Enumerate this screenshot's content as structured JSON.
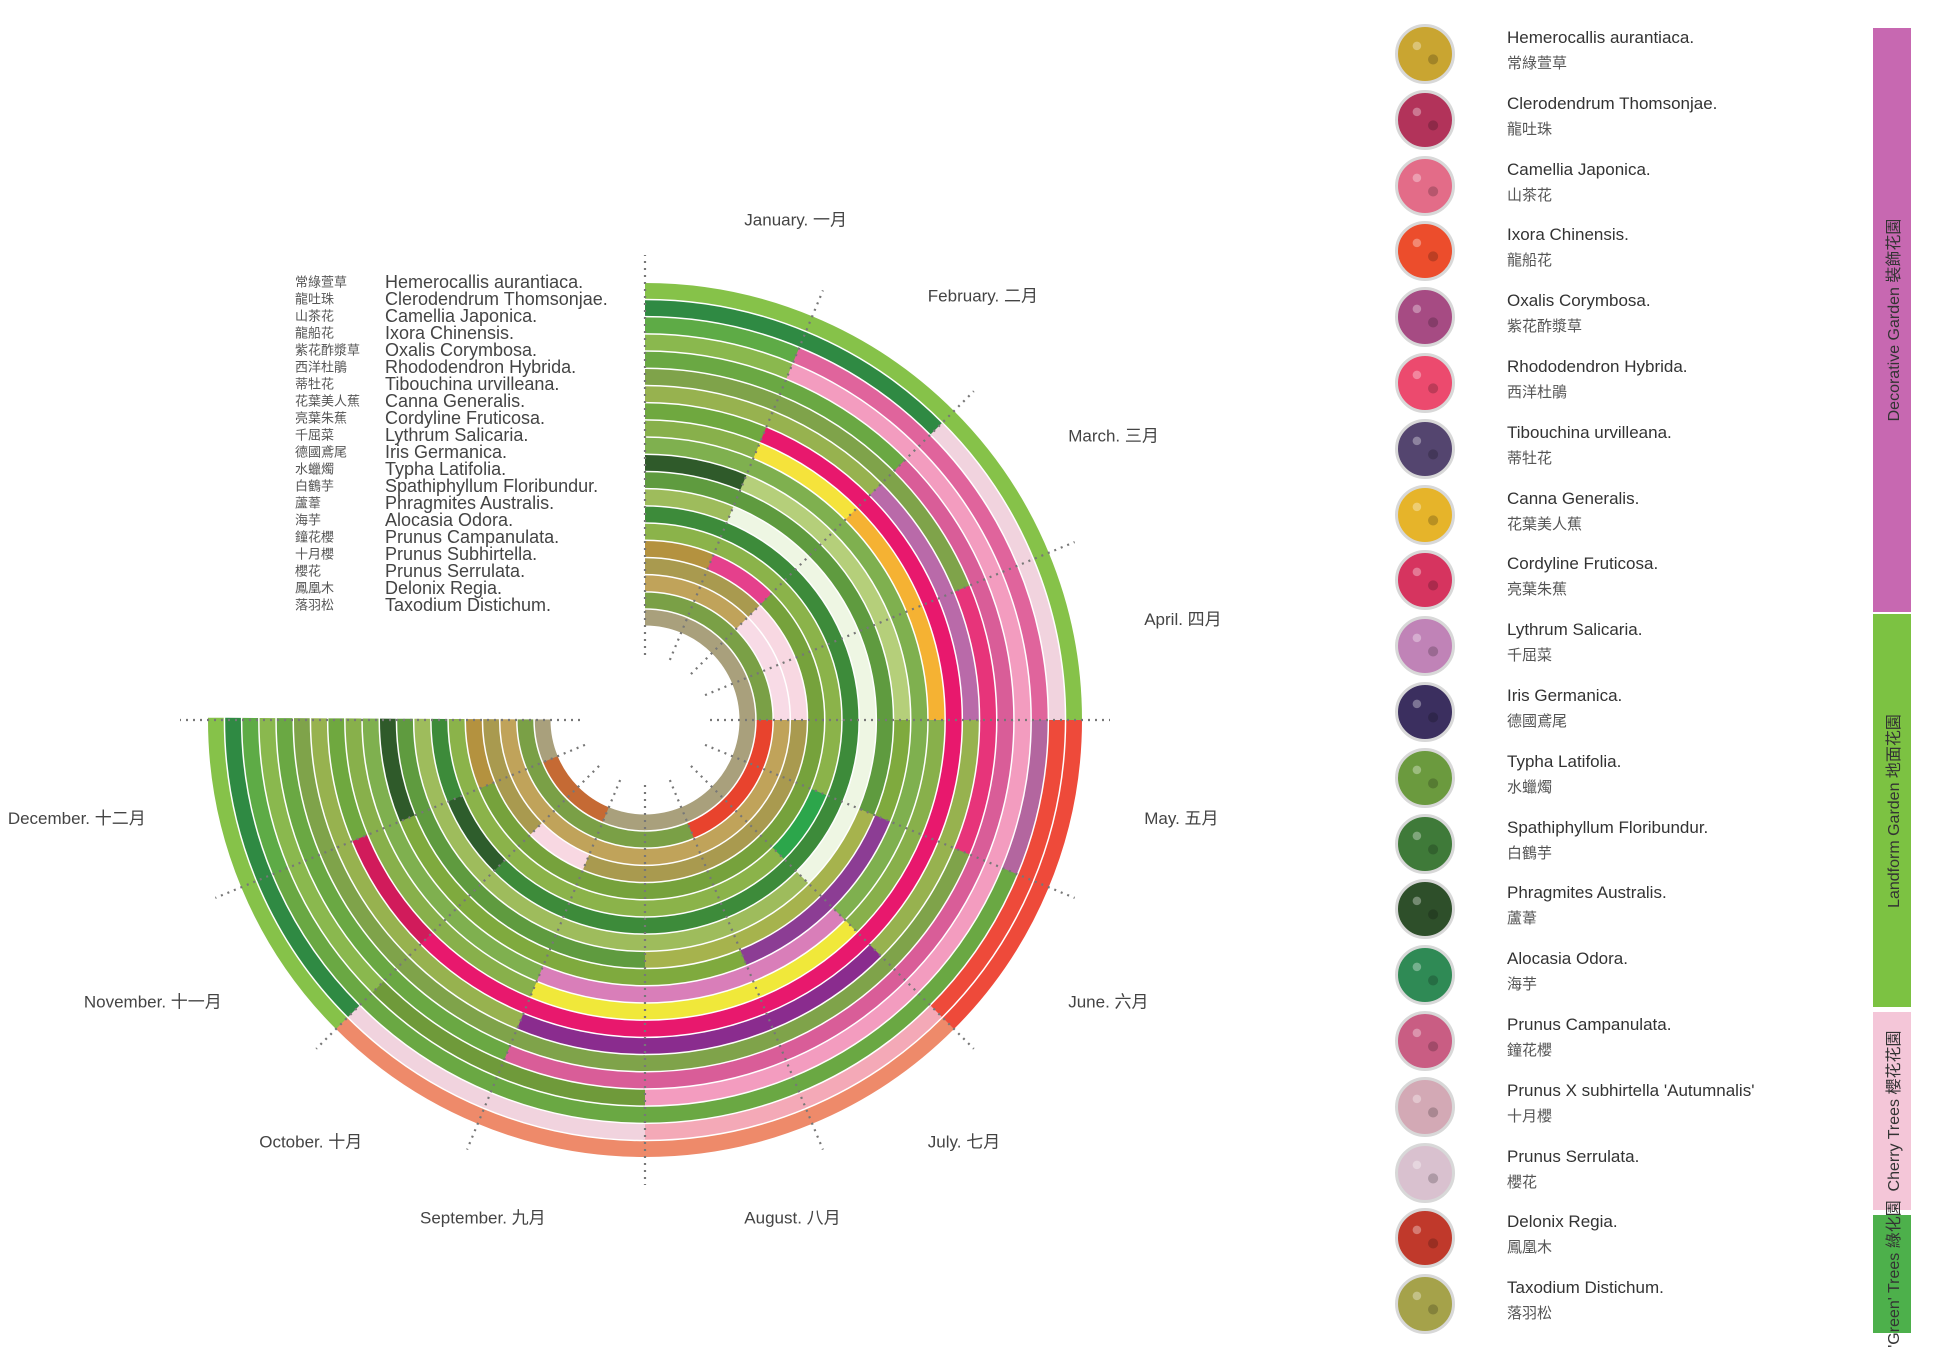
{
  "chart_data": {
    "type": "radial-bloom-calendar",
    "months": [
      "January. 一月",
      "February. 二月",
      "March. 三月",
      "April. 四月",
      "May. 五月",
      "June. 六月",
      "July. 七月",
      "August. 八月",
      "September. 九月",
      "October. 十月",
      "November. 十一月",
      "December. 十二月"
    ],
    "series": [
      {
        "name": "Hemerocallis aurantiaca.",
        "cn": "常綠萱草",
        "start_month": 1,
        "end_month": 12,
        "colors": [
          "#86c249",
          "#86c249",
          "#86c249",
          "#86c249",
          "#ee4a3a",
          "#ee4a3a",
          "#ee8a6a",
          "#ee8a6a",
          "#ee8a6a",
          "#ee8a6a",
          "#86c249",
          "#86c249"
        ]
      },
      {
        "name": "Clerodendrum Thomsonjae.",
        "cn": "龍吐珠",
        "start_month": 1,
        "end_month": 12,
        "colors": [
          "#2f8a43",
          "#2f8a43",
          "#f1d3de",
          "#f1d3de",
          "#ee4a3a",
          "#ee4a3a",
          "#f4a9b7",
          "#f4a9b7",
          "#f1d3de",
          "#f1d3de",
          "#2f8a43",
          "#2f8a43"
        ]
      },
      {
        "name": "Camellia Japonica.",
        "cn": "山茶花",
        "start_month": 1,
        "end_month": 12,
        "colors": [
          "#5eab46",
          "#e0649c",
          "#e0649c",
          "#e0649c",
          "#b3669f",
          "#6aa843",
          "#6aa843",
          "#6aa843",
          "#6aa843",
          "#6aa843",
          "#6aa843",
          "#5eab46"
        ]
      },
      {
        "name": "Ixora Chinensis.",
        "cn": "龍船花",
        "start_month": 1,
        "end_month": 12,
        "colors": [
          "#8ab84e",
          "#f39cbf",
          "#f39cbf",
          "#f39cbf",
          "#f39cbf",
          "#f39cbf",
          "#f39cbf",
          "#f39cbf",
          "#6f9a3a",
          "#6f9a3a",
          "#8ab84e",
          "#8ab84e"
        ]
      },
      {
        "name": "Oxalis Corymbosa.",
        "cn": "紫花酢漿草",
        "start_month": 1,
        "end_month": 12,
        "colors": [
          "#6aa843",
          "#6aa843",
          "#d95d98",
          "#d95d98",
          "#d95d98",
          "#d95d98",
          "#d95d98",
          "#d95d98",
          "#d95d98",
          "#6aa843",
          "#6aa843",
          "#6aa843"
        ]
      },
      {
        "name": "Rhododendron Hybrida.",
        "cn": "西洋杜鵑",
        "start_month": 1,
        "end_month": 12,
        "colors": [
          "#7fa34a",
          "#7fa34a",
          "#7fa34a",
          "#e7347a",
          "#e7347a",
          "#7fa34a",
          "#7fa34a",
          "#7fa34a",
          "#7fa34a",
          "#7fa34a",
          "#7fa34a",
          "#7fa34a"
        ]
      },
      {
        "name": "Tibouchina urvilleana.",
        "cn": "蒂牡花",
        "start_month": 1,
        "end_month": 12,
        "colors": [
          "#97b24f",
          "#97b24f",
          "#b96aa9",
          "#b96aa9",
          "#97b24f",
          "#97b24f",
          "#8a2c8e",
          "#8a2c8e",
          "#8a2c8e",
          "#97b24f",
          "#97b24f",
          "#97b24f"
        ]
      },
      {
        "name": "Canna Generalis.",
        "cn": "花葉美人蕉",
        "start_month": 1,
        "end_month": 12,
        "colors": [
          "#6fa83f",
          "#e8186d",
          "#e8186d",
          "#e8186d",
          "#e8186d",
          "#e8186d",
          "#e8186d",
          "#e8186d",
          "#e8186d",
          "#e8186d",
          "#d11b5b",
          "#6fa83f"
        ]
      },
      {
        "name": "Cordyline Fruticosa.",
        "cn": "亮葉朱蕉",
        "start_month": 1,
        "end_month": 12,
        "colors": [
          "#88b04b",
          "#f5e33b",
          "#f5b233",
          "#f5b233",
          "#88b04b",
          "#88b04b",
          "#f0e83a",
          "#f0e83a",
          "#f0e83a",
          "#88b04b",
          "#88b04b",
          "#88b04b"
        ]
      },
      {
        "name": "Lythrum Salicaria.",
        "cn": "千屈菜",
        "start_month": 1,
        "end_month": 12,
        "colors": [
          "#7fb04f",
          "#7fb04f",
          "#7fb04f",
          "#7fb04f",
          "#7fb04f",
          "#7fb04f",
          "#d97eb9",
          "#d97eb9",
          "#d97eb9",
          "#7fb04f",
          "#7fb04f",
          "#7fb04f"
        ]
      },
      {
        "name": "Iris Germanica.",
        "cn": "德國鳶尾",
        "start_month": 1,
        "end_month": 12,
        "colors": [
          "#2f5a2a",
          "#b5cf7a",
          "#b5cf7a",
          "#b5cf7a",
          "#7faa3e",
          "#8c3d94",
          "#8c3d94",
          "#7faa3e",
          "#7faa3e",
          "#7faa3e",
          "#7faa3e",
          "#2f5a2a"
        ]
      },
      {
        "name": "Typha Latifolia.",
        "cn": "水蠟燭",
        "start_month": 1,
        "end_month": 12,
        "colors": [
          "#5f9b3f",
          "#5f9b3f",
          "#5f9b3f",
          "#5f9b3f",
          "#5f9b3f",
          "#a6b34d",
          "#a6b34d",
          "#a6b34d",
          "#5f9b3f",
          "#5f9b3f",
          "#5f9b3f",
          "#5f9b3f"
        ]
      },
      {
        "name": "Spathiphyllum Floribundur.",
        "cn": "白鶴芋",
        "start_month": 1,
        "end_month": 12,
        "colors": [
          "#9ebc5c",
          "#eef6e3",
          "#eef6e3",
          "#eef6e3",
          "#eef6e3",
          "#eef6e3",
          "#9ebc5c",
          "#9ebc5c",
          "#9ebc5c",
          "#9ebc5c",
          "#9ebc5c",
          "#9ebc5c"
        ]
      },
      {
        "name": "Phragmites Australis.",
        "cn": "蘆葦",
        "start_month": 1,
        "end_month": 12,
        "colors": [
          "#3d8b3a",
          "#3d8b3a",
          "#3d8b3a",
          "#3d8b3a",
          "#3d8b3a",
          "#3d8b3a",
          "#3d8b3a",
          "#3d8b3a",
          "#3d8b3a",
          "#3d8b3a",
          "#2e5d2c",
          "#3d8b3a"
        ]
      },
      {
        "name": "Alocasia Odora.",
        "cn": "海芋",
        "start_month": 1,
        "end_month": 12,
        "colors": [
          "#8bb34a",
          "#8bb34a",
          "#8bb34a",
          "#8bb34a",
          "#8bb34a",
          "#2ca64b",
          "#8bb34a",
          "#8bb34a",
          "#8bb34a",
          "#8bb34a",
          "#8bb34a",
          "#8bb34a"
        ]
      },
      {
        "name": "Prunus Campanulata.",
        "cn": "鐘花櫻",
        "start_month": 1,
        "end_month": 12,
        "colors": [
          "#b4923f",
          "#e5408c",
          "#76a23c",
          "#76a23c",
          "#76a23c",
          "#76a23c",
          "#76a23c",
          "#76a23c",
          "#76a23c",
          "#76a23c",
          "#76a23c",
          "#b4923f"
        ]
      },
      {
        "name": "Prunus Subhirtella.",
        "cn": "十月櫻",
        "start_month": 1,
        "end_month": 12,
        "colors": [
          "#a99a4f",
          "#a99a4f",
          "#f8d8e2",
          "#f8d8e2",
          "#a99a4f",
          "#a99a4f",
          "#a99a4f",
          "#a99a4f",
          "#a99a4f",
          "#f8d8e2",
          "#a99a4f",
          "#a99a4f"
        ]
      },
      {
        "name": "Prunus Serrulata.",
        "cn": "櫻花",
        "start_month": 1,
        "end_month": 12,
        "colors": [
          "#c0a35a",
          "#c0a35a",
          "#f8dbe6",
          "#f8dbe6",
          "#c0a35a",
          "#c0a35a",
          "#c0a35a",
          "#c0a35a",
          "#c0a35a",
          "#c0a35a",
          "#c0a35a",
          "#c0a35a"
        ]
      },
      {
        "name": "Delonix Regia.",
        "cn": "鳳凰木",
        "start_month": 1,
        "end_month": 12,
        "colors": [
          "#7aa046",
          "#7aa046",
          "#7aa046",
          "#7aa046",
          "#e8432d",
          "#e8432d",
          "#e8432d",
          "#7aa046",
          "#7aa046",
          "#7aa046",
          "#7aa046",
          "#7aa046"
        ]
      },
      {
        "name": "Taxodium Distichum.",
        "cn": "落羽松",
        "start_month": 1,
        "end_month": 12,
        "colors": [
          "#a9a07c",
          "#a9a07c",
          "#a9a07c",
          "#a9a07c",
          "#a9a07c",
          "#a9a07c",
          "#a9a07c",
          "#a9a07c",
          "#a9a07c",
          "#c56a34",
          "#c56a34",
          "#a9a07c"
        ]
      }
    ]
  },
  "legend": [
    {
      "name": "Hemerocallis aurantiaca.",
      "cn": "常綠萱草",
      "thumb": "#c9a531",
      "icon": "hemerocallis-photo"
    },
    {
      "name": "Clerodendrum Thomsonjae.",
      "cn": "龍吐珠",
      "thumb": "#b2335a",
      "icon": "clerodendrum-photo"
    },
    {
      "name": "Camellia Japonica.",
      "cn": "山茶花",
      "thumb": "#e36c88",
      "icon": "camellia-photo"
    },
    {
      "name": "Ixora Chinensis.",
      "cn": "龍船花",
      "thumb": "#ec4d2c",
      "icon": "ixora-photo"
    },
    {
      "name": "Oxalis Corymbosa.",
      "cn": "紫花酢漿草",
      "thumb": "#a64b83",
      "icon": "oxalis-photo"
    },
    {
      "name": "Rhododendron Hybrida.",
      "cn": "西洋杜鵑",
      "thumb": "#ec4a6e",
      "icon": "rhododendron-photo"
    },
    {
      "name": "Tibouchina urvilleana.",
      "cn": "蒂牡花",
      "thumb": "#54456f",
      "icon": "tibouchina-photo"
    },
    {
      "name": "Canna Generalis.",
      "cn": "花葉美人蕉",
      "thumb": "#e6b42a",
      "icon": "canna-photo"
    },
    {
      "name": "Cordyline Fruticosa.",
      "cn": "亮葉朱蕉",
      "thumb": "#d6345f",
      "icon": "cordyline-photo"
    },
    {
      "name": "Lythrum Salicaria.",
      "cn": "千屈菜",
      "thumb": "#c083b7",
      "icon": "lythrum-photo"
    },
    {
      "name": "Iris Germanica.",
      "cn": "德國鳶尾",
      "thumb": "#3b2f5f",
      "icon": "iris-photo"
    },
    {
      "name": "Typha Latifolia.",
      "cn": "水蠟燭",
      "thumb": "#6b9a3e",
      "icon": "typha-photo"
    },
    {
      "name": "Spathiphyllum Floribundur.",
      "cn": "白鶴芋",
      "thumb": "#3f7a39",
      "icon": "spathiphyllum-photo"
    },
    {
      "name": "Phragmites Australis.",
      "cn": "蘆葦",
      "thumb": "#2e4f2a",
      "icon": "phragmites-photo"
    },
    {
      "name": "Alocasia Odora.",
      "cn": "海芋",
      "thumb": "#2f8a55",
      "icon": "alocasia-photo"
    },
    {
      "name": "Prunus Campanulata.",
      "cn": "鐘花櫻",
      "thumb": "#c95d83",
      "icon": "prunus-campanulata-photo"
    },
    {
      "name": "Prunus X subhirtella 'Autumnalis'",
      "cn": "十月櫻",
      "thumb": "#d3a9b5",
      "icon": "prunus-subhirtella-photo"
    },
    {
      "name": "Prunus Serrulata.",
      "cn": "櫻花",
      "thumb": "#d9c1cf",
      "icon": "prunus-serrulata-photo"
    },
    {
      "name": "Delonix Regia.",
      "cn": "鳳凰木",
      "thumb": "#c0392b",
      "icon": "delonix-photo"
    },
    {
      "name": "Taxodium Distichum.",
      "cn": "落羽松",
      "thumb": "#a5a24a",
      "icon": "taxodium-photo"
    }
  ],
  "groups": [
    {
      "label": "Decorative Garden 裝飾花園",
      "color": "#c768b1"
    },
    {
      "label": "Landform Garden 地面花園",
      "color": "#7cc242"
    },
    {
      "label": "Cherry Trees 櫻花花園",
      "color": "#f4c6d8"
    },
    {
      "label": "'Green' Trees 綠化園",
      "color": "#4db04b"
    }
  ]
}
